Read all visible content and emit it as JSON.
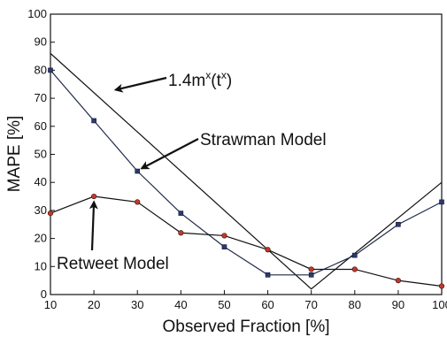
{
  "chart_data": {
    "type": "line",
    "title": "",
    "xlabel": "Observed Fraction [%]",
    "ylabel": "MAPE [%]",
    "xlim": [
      10,
      100
    ],
    "ylim": [
      0,
      100
    ],
    "x_ticks": [
      10,
      20,
      30,
      40,
      50,
      60,
      70,
      80,
      90,
      100
    ],
    "y_ticks": [
      0,
      10,
      20,
      30,
      40,
      50,
      60,
      70,
      80,
      90,
      100
    ],
    "grid": false,
    "legend": "none",
    "series": [
      {
        "key": "power",
        "name": "1.4m",
        "name_sup1": "x",
        "name_mid": "(t",
        "name_sup2": "x",
        "name_end": ")",
        "color": "#111111",
        "marker": "none",
        "points": [
          [
            10,
            86
          ],
          [
            70,
            2
          ],
          [
            100,
            40
          ]
        ]
      },
      {
        "key": "strawman",
        "name": "Strawman Model",
        "color": "#1f2a4a",
        "marker": "square",
        "marker_color": "#2d3a6b",
        "points": [
          [
            10,
            80
          ],
          [
            20,
            62
          ],
          [
            30,
            44
          ],
          [
            40,
            29
          ],
          [
            50,
            17
          ],
          [
            60,
            7
          ],
          [
            70,
            7
          ],
          [
            80,
            14
          ],
          [
            90,
            25
          ],
          [
            100,
            33
          ]
        ]
      },
      {
        "key": "retweet",
        "name": "Retweet Model",
        "color": "#111111",
        "marker": "circle",
        "marker_color": "#c0392b",
        "points": [
          [
            10,
            29
          ],
          [
            20,
            35
          ],
          [
            30,
            33
          ],
          [
            40,
            22
          ],
          [
            50,
            21
          ],
          [
            60,
            16
          ],
          [
            70,
            9
          ],
          [
            80,
            9
          ],
          [
            90,
            5
          ],
          [
            100,
            3
          ]
        ]
      }
    ],
    "annotations": [
      {
        "series": "power",
        "label_at": [
          1.4,
          1.0
        ],
        "arrow_to": [
          25,
          73
        ]
      },
      {
        "series": "strawman",
        "label_at": [
          1.4,
          1.0
        ],
        "arrow_to": [
          31,
          45
        ]
      },
      {
        "series": "retweet",
        "label_at": [
          1.4,
          1.0
        ],
        "arrow_to": [
          20,
          33
        ]
      }
    ]
  }
}
